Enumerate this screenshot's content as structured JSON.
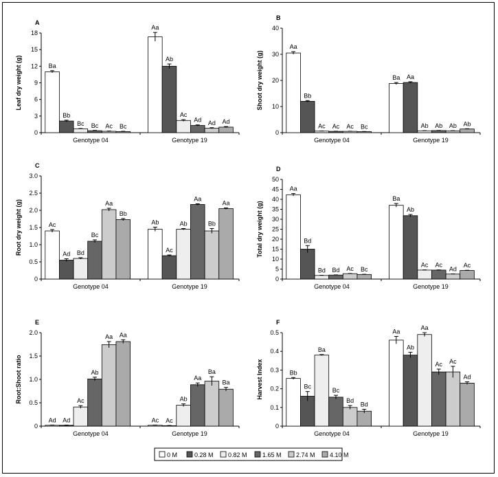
{
  "legend": {
    "entries": [
      {
        "label": "0 M",
        "color": "#ffffff"
      },
      {
        "label": "0.28 M",
        "color": "#555555"
      },
      {
        "label": "0.82 M",
        "color": "#eeeeee"
      },
      {
        "label": "1.65 M",
        "color": "#666666"
      },
      {
        "label": "2.74 M",
        "color": "#cccccc"
      },
      {
        "label": "4.10 M",
        "color": "#aaaaaa"
      }
    ]
  },
  "chart_data": [
    {
      "panel": "A",
      "type": "bar",
      "ylabel": "Leaf dry weight (g)",
      "categories": [
        "Genotype 04",
        "Genotype 19"
      ],
      "ylim": [
        0,
        18
      ],
      "yticks": [
        "0",
        "3",
        "6",
        "9",
        "12",
        "15",
        "18"
      ],
      "series": [
        {
          "name": "0 M",
          "values": [
            11.0,
            17.3
          ],
          "errors": [
            0.2,
            0.8
          ],
          "letters": [
            "Ba",
            "Aa"
          ]
        },
        {
          "name": "0.28 M",
          "values": [
            2.1,
            12.0
          ],
          "errors": [
            0.15,
            0.4
          ],
          "letters": [
            "Bb",
            "Ab"
          ]
        },
        {
          "name": "0.82 M",
          "values": [
            0.7,
            2.2
          ],
          "errors": [
            0.05,
            0.15
          ],
          "letters": [
            "Bc",
            "Ac"
          ]
        },
        {
          "name": "1.65 M",
          "values": [
            0.35,
            1.3
          ],
          "errors": [
            0.05,
            0.1
          ],
          "letters": [
            "Bc",
            "Ad"
          ]
        },
        {
          "name": "2.74 M",
          "values": [
            0.25,
            0.8
          ],
          "errors": [
            0.05,
            0.1
          ],
          "letters": [
            "Ac",
            "Ad"
          ]
        },
        {
          "name": "4.10 M",
          "values": [
            0.2,
            1.0
          ],
          "errors": [
            0.05,
            0.1
          ],
          "letters": [
            "Bc",
            "Ad"
          ]
        }
      ]
    },
    {
      "panel": "B",
      "type": "bar",
      "ylabel": "Shoot dry weight (g)",
      "categories": [
        "Genotype 04",
        "Genotype 19"
      ],
      "ylim": [
        0,
        40
      ],
      "yticks": [
        "0",
        "10",
        "20",
        "30",
        "40"
      ],
      "series": [
        {
          "name": "0 M",
          "values": [
            30.5,
            18.8
          ],
          "errors": [
            0.5,
            0.4
          ],
          "letters": [
            "Aa",
            "Ba"
          ]
        },
        {
          "name": "0.28 M",
          "values": [
            12.0,
            19.2
          ],
          "errors": [
            0.3,
            0.3
          ],
          "letters": [
            "Bb",
            "Aa"
          ]
        },
        {
          "name": "0.82 M",
          "values": [
            0.6,
            0.7
          ],
          "errors": [
            0.05,
            0.05
          ],
          "letters": [
            "Ac",
            "Ab"
          ]
        },
        {
          "name": "1.65 M",
          "values": [
            0.5,
            0.8
          ],
          "errors": [
            0.05,
            0.05
          ],
          "letters": [
            "Ac",
            "Ab"
          ]
        },
        {
          "name": "2.74 M",
          "values": [
            0.5,
            0.7
          ],
          "errors": [
            0.05,
            0.05
          ],
          "letters": [
            "Ac",
            "Ab"
          ]
        },
        {
          "name": "4.10 M",
          "values": [
            0.4,
            1.4
          ],
          "errors": [
            0.05,
            0.1
          ],
          "letters": [
            "Bc",
            "Ab"
          ]
        }
      ]
    },
    {
      "panel": "C",
      "type": "bar",
      "ylabel": "Root dry weight (g)",
      "categories": [
        "Genotype 04",
        "Genotype 19"
      ],
      "ylim": [
        0,
        3
      ],
      "yticks": [
        "0",
        "0.5",
        "1.0",
        "1.5",
        "2.0",
        "2.5",
        "3.0"
      ],
      "series": [
        {
          "name": "0 M",
          "values": [
            1.4,
            1.45
          ],
          "errors": [
            0.04,
            0.06
          ],
          "letters": [
            "Ac",
            "Ab"
          ]
        },
        {
          "name": "0.28 M",
          "values": [
            0.55,
            0.68
          ],
          "errors": [
            0.04,
            0.02
          ],
          "letters": [
            "Ad",
            "Ac"
          ]
        },
        {
          "name": "0.82 M",
          "values": [
            0.6,
            1.45
          ],
          "errors": [
            0.02,
            0.02
          ],
          "letters": [
            "Bd",
            "Ab"
          ]
        },
        {
          "name": "1.65 M",
          "values": [
            1.1,
            2.17
          ],
          "errors": [
            0.04,
            0.02
          ],
          "letters": [
            "Bc",
            "Aa"
          ]
        },
        {
          "name": "2.74 M",
          "values": [
            2.02,
            1.4
          ],
          "errors": [
            0.04,
            0.07
          ],
          "letters": [
            "Aa",
            "Bb"
          ]
        },
        {
          "name": "4.10 M",
          "values": [
            1.73,
            2.05
          ],
          "errors": [
            0.03,
            0.02
          ],
          "letters": [
            "Bb",
            "Aa"
          ]
        }
      ]
    },
    {
      "panel": "D",
      "type": "bar",
      "ylabel": "Total dry weight (g)",
      "categories": [
        "Genotype 04",
        "Genotype 19"
      ],
      "ylim": [
        0,
        50
      ],
      "yticks": [
        "0",
        "5",
        "10",
        "15",
        "20",
        "25",
        "30",
        "35",
        "40",
        "45",
        "50"
      ],
      "series": [
        {
          "name": "0 M",
          "values": [
            42.3,
            37.0
          ],
          "errors": [
            0.6,
            0.9
          ],
          "letters": [
            "Aa",
            "Ba"
          ]
        },
        {
          "name": "0.28 M",
          "values": [
            15.0,
            31.8
          ],
          "errors": [
            1.8,
            0.6
          ],
          "letters": [
            "Bd",
            "Ab"
          ]
        },
        {
          "name": "0.82 M",
          "values": [
            1.8,
            4.5
          ],
          "errors": [
            0.1,
            0.1
          ],
          "letters": [
            "Bd",
            "Ac"
          ]
        },
        {
          "name": "1.65 M",
          "values": [
            2.0,
            4.5
          ],
          "errors": [
            0.1,
            0.1
          ],
          "letters": [
            "Bd",
            "Ac"
          ]
        },
        {
          "name": "2.74 M",
          "values": [
            2.7,
            2.5
          ],
          "errors": [
            0.1,
            0.1
          ],
          "letters": [
            "Ac",
            "Ad"
          ]
        },
        {
          "name": "4.10 M",
          "values": [
            2.3,
            4.3
          ],
          "errors": [
            0.1,
            0.1
          ],
          "letters": [
            "Bc",
            "Ac"
          ]
        }
      ]
    },
    {
      "panel": "E",
      "type": "bar",
      "ylabel": "Root:Shoot ratio",
      "categories": [
        "Genotype 04",
        "Genotype 19"
      ],
      "ylim": [
        0,
        2.1
      ],
      "yticks": [
        "0",
        "0.5",
        "1.0",
        "1.5",
        "2.0"
      ],
      "series": [
        {
          "name": "0 M",
          "values": [
            0.02,
            0.02
          ],
          "errors": [
            0.005,
            0.005
          ],
          "letters": [
            "Ad",
            "Ac"
          ]
        },
        {
          "name": "0.28 M",
          "values": [
            0.02,
            0.01
          ],
          "errors": [
            0.005,
            0.005
          ],
          "letters": [
            "Ad",
            "Ac"
          ]
        },
        {
          "name": "0.82 M",
          "values": [
            0.43,
            0.47
          ],
          "errors": [
            0.03,
            0.03
          ],
          "letters": [
            "Ac",
            "Ab"
          ]
        },
        {
          "name": "1.65 M",
          "values": [
            1.06,
            0.93
          ],
          "errors": [
            0.04,
            0.04
          ],
          "letters": [
            "Ab",
            "Aa"
          ]
        },
        {
          "name": "2.74 M",
          "values": [
            1.83,
            1.01
          ],
          "errors": [
            0.07,
            0.1
          ],
          "letters": [
            "Aa",
            "Ba"
          ]
        },
        {
          "name": "4.10 M",
          "values": [
            1.9,
            0.83
          ],
          "errors": [
            0.04,
            0.04
          ],
          "letters": [
            "Aa",
            "Ba"
          ]
        }
      ]
    },
    {
      "panel": "F",
      "type": "bar",
      "ylabel": "Harvest Index",
      "categories": [
        "Genotype 04",
        "Genotype 19"
      ],
      "ylim": [
        0,
        0.5
      ],
      "yticks": [
        "0",
        "0.1",
        "0.2",
        "0.3",
        "0.4",
        "0.5"
      ],
      "series": [
        {
          "name": "0 M",
          "values": [
            0.255,
            0.46
          ],
          "errors": [
            0.005,
            0.02
          ],
          "letters": [
            "Bb",
            "Aa"
          ]
        },
        {
          "name": "0.28 M",
          "values": [
            0.16,
            0.38
          ],
          "errors": [
            0.025,
            0.015
          ],
          "letters": [
            "Bc",
            "Ab"
          ]
        },
        {
          "name": "0.82 M",
          "values": [
            0.38,
            0.49
          ],
          "errors": [
            0.003,
            0.01
          ],
          "letters": [
            "Ba",
            "Aa"
          ]
        },
        {
          "name": "1.65 M",
          "values": [
            0.155,
            0.29
          ],
          "errors": [
            0.01,
            0.015
          ],
          "letters": [
            "Bc",
            "Ac"
          ]
        },
        {
          "name": "2.74 M",
          "values": [
            0.1,
            0.29
          ],
          "errors": [
            0.01,
            0.03
          ],
          "letters": [
            "Bd",
            "Ac"
          ]
        },
        {
          "name": "4.10 M",
          "values": [
            0.08,
            0.23
          ],
          "errors": [
            0.01,
            0.007
          ],
          "letters": [
            "Bd",
            "Ad"
          ]
        }
      ]
    }
  ]
}
